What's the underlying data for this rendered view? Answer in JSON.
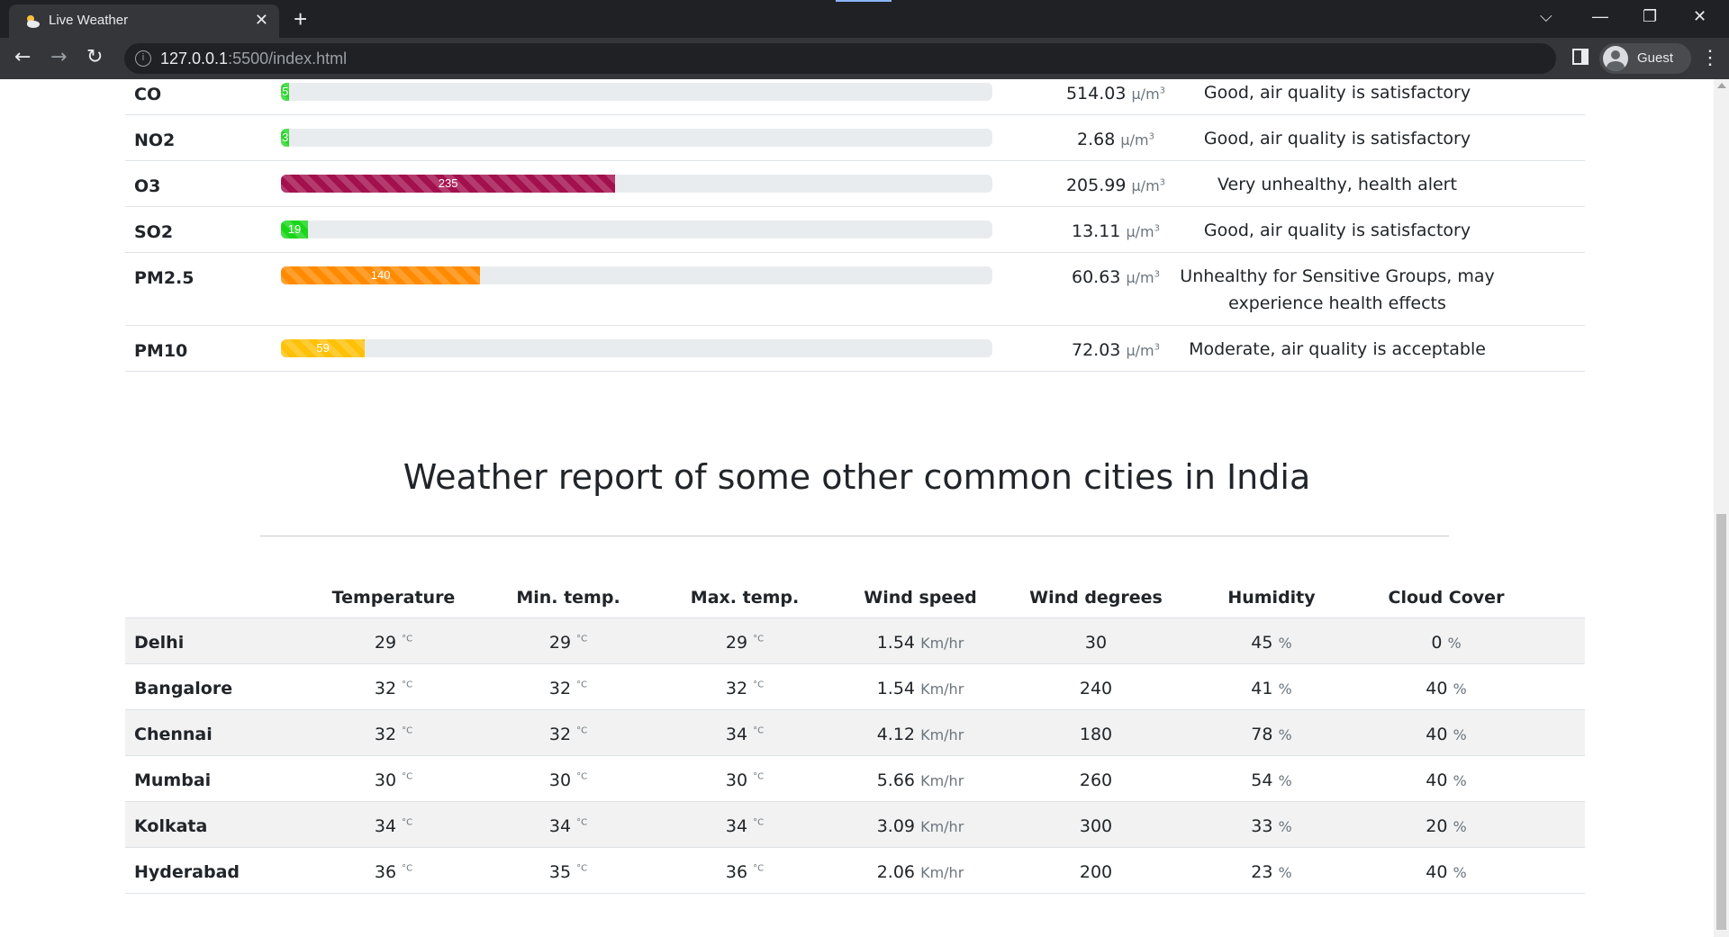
{
  "browser": {
    "tab_title": "Live Weather",
    "tab_close": "✕",
    "new_tab": "+",
    "url_host": "127.0.0.1",
    "url_path": ":5500/index.html",
    "profile_name": "Guest",
    "icons": [
      "weather-favicon",
      "back-icon",
      "forward-icon",
      "reload-icon",
      "info-icon",
      "location-pin-icon",
      "side-panel-icon",
      "profile-avatar-icon",
      "menu-icon",
      "tab-search-icon",
      "minimize-icon",
      "restore-icon",
      "close-icon"
    ]
  },
  "air_quality": {
    "unit": "μ/m",
    "unit_sup": "3",
    "rows": [
      {
        "name": "CO",
        "aqi": "5",
        "percent": 0.6,
        "color": "#28d628",
        "value": "514.03",
        "status": "Good, air quality is satisfactory"
      },
      {
        "name": "NO2",
        "aqi": "3",
        "percent": 0.5,
        "color": "#28d628",
        "value": "2.68",
        "status": "Good, air quality is satisfactory"
      },
      {
        "name": "O3",
        "aqi": "235",
        "percent": 47,
        "color": "#a3104e",
        "value": "205.99",
        "status": "Very unhealthy, health alert"
      },
      {
        "name": "SO2",
        "aqi": "19",
        "percent": 3.8,
        "color": "#19d619",
        "value": "13.11",
        "status": "Good, air quality is satisfactory"
      },
      {
        "name": "PM2.5",
        "aqi": "140",
        "percent": 28,
        "color": "#ff8a00",
        "value": "60.63",
        "status": "Unhealthy for Sensitive Groups, may experience health effects"
      },
      {
        "name": "PM10",
        "aqi": "59",
        "percent": 11.8,
        "color": "#ffc107",
        "value": "72.03",
        "status": "Moderate, air quality is acceptable"
      }
    ]
  },
  "cities_section": {
    "title": "Weather report of some other common cities in India",
    "headers": [
      "Temperature",
      "Min. temp.",
      "Max. temp.",
      "Wind speed",
      "Wind degrees",
      "Humidity",
      "Cloud Cover"
    ],
    "units": {
      "temp": "°C",
      "wind": "Km/hr",
      "percent": "%"
    },
    "rows": [
      {
        "city": "Delhi",
        "temp": "29",
        "min": "29",
        "max": "29",
        "wind_speed": "1.54",
        "wind_deg": "30",
        "humidity": "45",
        "cloud": "0"
      },
      {
        "city": "Bangalore",
        "temp": "32",
        "min": "32",
        "max": "32",
        "wind_speed": "1.54",
        "wind_deg": "240",
        "humidity": "41",
        "cloud": "40"
      },
      {
        "city": "Chennai",
        "temp": "32",
        "min": "32",
        "max": "34",
        "wind_speed": "4.12",
        "wind_deg": "180",
        "humidity": "78",
        "cloud": "40"
      },
      {
        "city": "Mumbai",
        "temp": "30",
        "min": "30",
        "max": "30",
        "wind_speed": "5.66",
        "wind_deg": "260",
        "humidity": "54",
        "cloud": "40"
      },
      {
        "city": "Kolkata",
        "temp": "34",
        "min": "34",
        "max": "34",
        "wind_speed": "3.09",
        "wind_deg": "300",
        "humidity": "33",
        "cloud": "20"
      },
      {
        "city": "Hyderabad",
        "temp": "36",
        "min": "35",
        "max": "36",
        "wind_speed": "2.06",
        "wind_deg": "200",
        "humidity": "23",
        "cloud": "40"
      }
    ]
  }
}
